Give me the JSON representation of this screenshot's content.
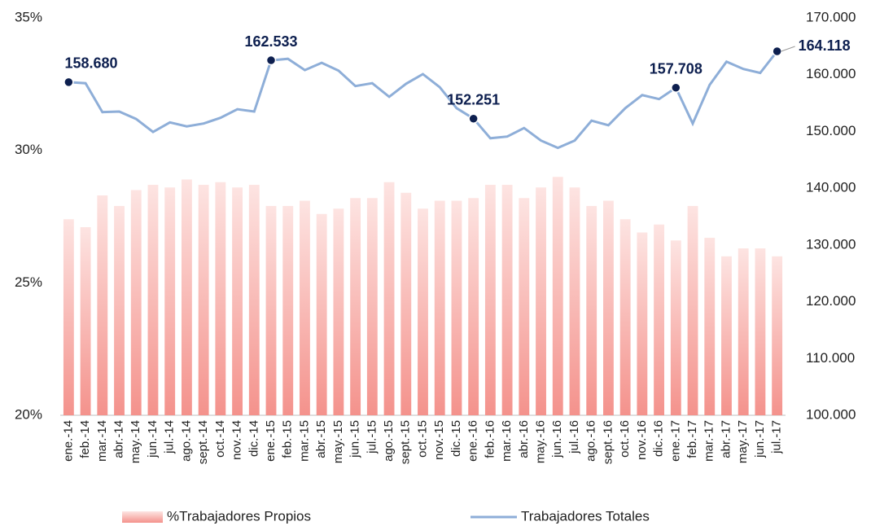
{
  "chart_data": {
    "type": "bar-line",
    "categories": [
      "ene.-14",
      "feb.-14",
      "mar.-14",
      "abr.-14",
      "may.-14",
      "jun.-14",
      "jul.-14",
      "ago.-14",
      "sept.-14",
      "oct.-14",
      "nov.-14",
      "dic.-14",
      "ene.-15",
      "feb.-15",
      "mar.-15",
      "abr.-15",
      "may.-15",
      "jun.-15",
      "jul.-15",
      "ago.-15",
      "sept.-15",
      "oct.-15",
      "nov.-15",
      "dic.-15",
      "ene.-16",
      "feb.-16",
      "mar.-16",
      "abr.-16",
      "may.-16",
      "jun.-16",
      "jul.-16",
      "ago.-16",
      "sept.-16",
      "oct.-16",
      "nov.-16",
      "dic.-16",
      "ene.-17",
      "feb.-17",
      "mar.-17",
      "abr.-17",
      "may.-17",
      "jun.-17",
      "jul.-17"
    ],
    "series": [
      {
        "name": "%Trabajadores Propios",
        "type": "bar",
        "color": "#f4928c",
        "axis": "y",
        "values": [
          27.4,
          27.1,
          28.3,
          27.9,
          28.5,
          28.7,
          28.6,
          28.9,
          28.7,
          28.8,
          28.6,
          28.7,
          27.9,
          27.9,
          28.1,
          27.6,
          27.8,
          28.2,
          28.2,
          28.8,
          28.4,
          27.8,
          28.1,
          28.1,
          28.2,
          28.7,
          28.7,
          28.2,
          28.6,
          29.0,
          28.6,
          27.9,
          28.1,
          27.4,
          26.9,
          27.2,
          26.6,
          27.9,
          26.7,
          26.0,
          26.3,
          26.3,
          26.0
        ]
      },
      {
        "name": "Trabajadores Totales",
        "type": "line",
        "color": "#8eaed8",
        "axis": "y2",
        "values": [
          158680,
          158500,
          153400,
          153500,
          152200,
          149900,
          151600,
          150900,
          151400,
          152400,
          153900,
          153500,
          162533,
          162800,
          160800,
          162100,
          160700,
          158000,
          158500,
          156100,
          158400,
          160100,
          157800,
          154100,
          152251,
          148800,
          149100,
          150600,
          148400,
          147100,
          148400,
          151900,
          151100,
          154100,
          156400,
          155700,
          157708,
          151400,
          158200,
          162300,
          161000,
          160300,
          164118
        ],
        "value_labels": [
          "158.680",
          null,
          null,
          null,
          null,
          null,
          null,
          null,
          null,
          null,
          null,
          null,
          "162.533",
          null,
          null,
          null,
          null,
          null,
          null,
          null,
          null,
          null,
          null,
          null,
          "152.251",
          null,
          null,
          null,
          null,
          null,
          null,
          null,
          null,
          null,
          null,
          null,
          "157.708",
          null,
          null,
          null,
          null,
          null,
          "164.118"
        ],
        "marker_color": "#0d1f4f"
      }
    ],
    "ylim": [
      20,
      35
    ],
    "yticks": [
      {
        "value": 20,
        "label": "20%"
      },
      {
        "value": 25,
        "label": "25%"
      },
      {
        "value": 30,
        "label": "30%"
      },
      {
        "value": 35,
        "label": "35%"
      }
    ],
    "y2lim": [
      100000,
      170000
    ],
    "y2ticks": [
      {
        "value": 100000,
        "label": "100.000"
      },
      {
        "value": 110000,
        "label": "110.000"
      },
      {
        "value": 120000,
        "label": "120.000"
      },
      {
        "value": 130000,
        "label": "130.000"
      },
      {
        "value": 140000,
        "label": "140.000"
      },
      {
        "value": 150000,
        "label": "150.000"
      },
      {
        "value": 160000,
        "label": "160.000"
      },
      {
        "value": 170000,
        "label": "170.000"
      }
    ],
    "legend": "bottom"
  }
}
